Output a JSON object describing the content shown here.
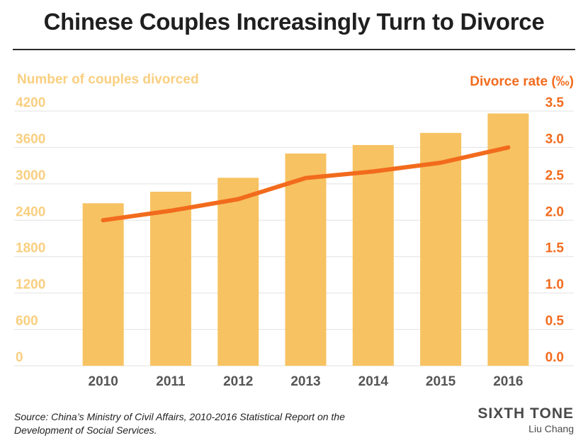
{
  "title": "Chinese Couples Increasingly Turn to Divorce",
  "source": "Source: China’s Ministry of Civil Affairs, 2010-2016 Statistical Report on the Development of Social Services.",
  "brand": "SIXTH TONE",
  "credit": "Liu Chang",
  "colors": {
    "bar": "#f7c262",
    "line": "#f26b1d",
    "left_axis": "#f9cf80",
    "right_axis": "#f26b1d",
    "grid": "#e2e2e2",
    "text": "#555555"
  },
  "chart_data": {
    "type": "bar+line",
    "categories": [
      "2010",
      "2011",
      "2012",
      "2013",
      "2014",
      "2015",
      "2016"
    ],
    "series": [
      {
        "type": "bar",
        "axis": "left",
        "values": [
          2680,
          2870,
          3100,
          3500,
          3640,
          3840,
          4160
        ]
      },
      {
        "type": "line",
        "axis": "right",
        "values": [
          2.0,
          2.13,
          2.29,
          2.58,
          2.67,
          2.79,
          3.0
        ]
      }
    ],
    "left_axis": {
      "label": "Number of couples divorced",
      "range": [
        0,
        4200
      ],
      "ticks": [
        "0",
        "600",
        "1200",
        "1800",
        "2400",
        "3000",
        "3600",
        "4200"
      ]
    },
    "right_axis": {
      "label": "Divorce rate (‰)",
      "range": [
        0,
        3.5
      ],
      "ticks": [
        "0.0",
        "0.5",
        "1.0",
        "1.5",
        "2.0",
        "2.5",
        "3.0",
        "3.5"
      ]
    },
    "grid": true
  }
}
